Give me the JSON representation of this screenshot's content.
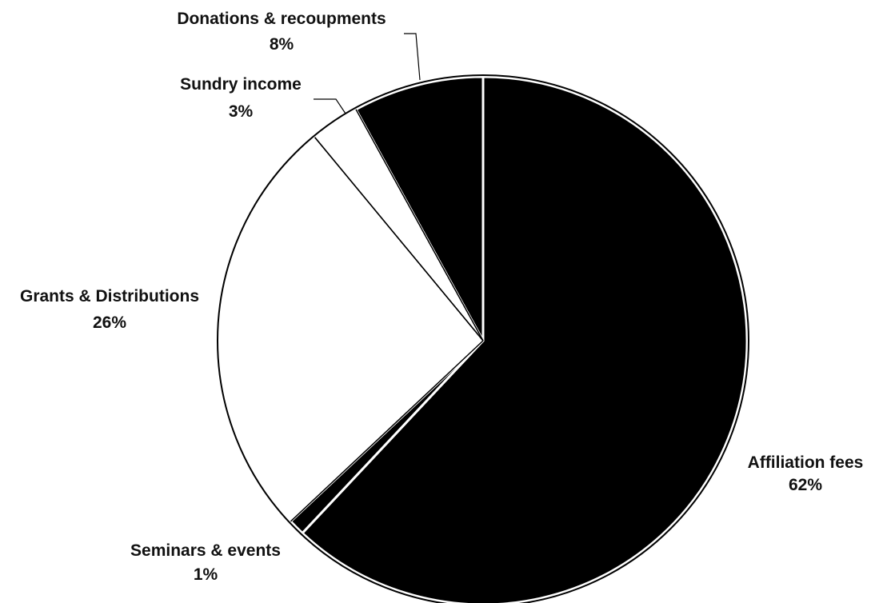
{
  "chart_data": {
    "type": "pie",
    "title": "",
    "slices": [
      {
        "label": "Affiliation fees",
        "value": 62,
        "percent_label": "62%",
        "color": "#000000"
      },
      {
        "label": "Seminars & events",
        "value": 1,
        "percent_label": "1%",
        "color": "#000000"
      },
      {
        "label": "Grants & Distributions",
        "value": 26,
        "percent_label": "26%",
        "color": "#ffffff"
      },
      {
        "label": "Sundry income",
        "value": 3,
        "percent_label": "3%",
        "color": "#ffffff"
      },
      {
        "label": "Donations & recoupments",
        "value": 8,
        "percent_label": "8%",
        "color": "#000000"
      }
    ],
    "start_angle_deg": 0,
    "direction": "clockwise",
    "legend": "none",
    "labels": "outside"
  }
}
